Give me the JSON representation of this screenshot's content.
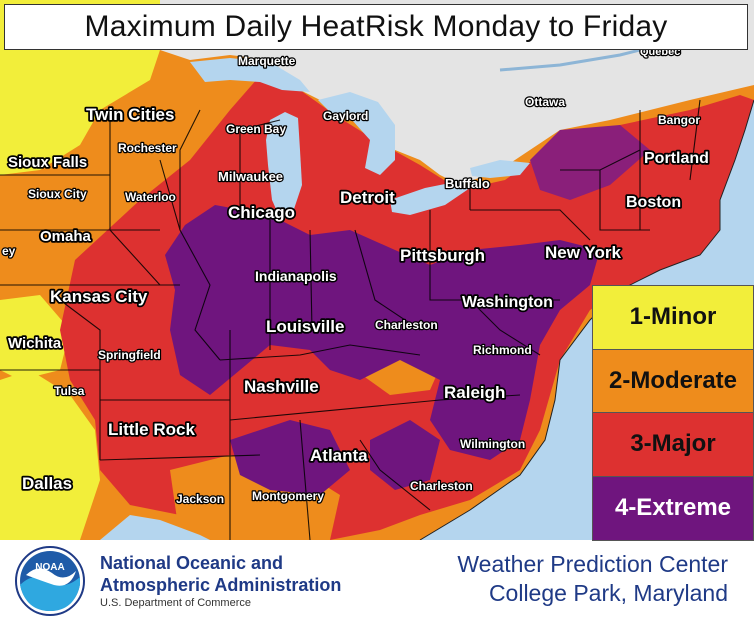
{
  "title": "Maximum Daily HeatRisk Monday to Friday",
  "legend": {
    "items": [
      {
        "label": "1-Minor",
        "color": "#f2ee3a"
      },
      {
        "label": "2-Moderate",
        "color": "#ee8c1c"
      },
      {
        "label": "3-Major",
        "color": "#dd3130"
      },
      {
        "label": "4-Extreme",
        "color": "#6f157e"
      }
    ]
  },
  "colors": {
    "water": "#b4d5ee",
    "canada": "#e4e4e4",
    "border": "#000000"
  },
  "map_labels": {
    "major": {
      "twin_cities": "Twin Cities",
      "chicago": "Chicago",
      "detroit": "Detroit",
      "pittsburgh": "Pittsburgh",
      "new_york": "New York",
      "boston": "Boston",
      "portland": "Portland",
      "kansas_city": "Kansas City",
      "indianapolis": "Indianapolis",
      "louisville": "Louisville",
      "washington": "Washington",
      "nashville": "Nashville",
      "raleigh": "Raleigh",
      "little_rock": "Little Rock",
      "atlanta": "Atlanta",
      "dallas": "Dallas",
      "omaha": "Omaha",
      "wichita": "Wichita",
      "sioux_falls": "Sioux Falls"
    },
    "minor": {
      "marquette": "Marquette",
      "gaylord": "Gaylord",
      "green_bay": "Green Bay",
      "rochester": "Rochester",
      "milwaukee": "Milwaukee",
      "sioux_city": "Sioux City",
      "waterloo": "Waterloo",
      "buffalo": "Buffalo",
      "ottawa": "Ottawa",
      "quebec": "Quebec",
      "bangor": "Bangor",
      "charleston_wv": "Charleston",
      "richmond": "Richmond",
      "springfield": "Springfield",
      "tulsa": "Tulsa",
      "wilmington": "Wilmington",
      "jackson": "Jackson",
      "montgomery": "Montgomery",
      "charleston_sc": "Charleston",
      "edge_fragment": "ey"
    }
  },
  "footer": {
    "agency_line1": "National Oceanic and",
    "agency_line2": "Atmospheric Administration",
    "department": "U.S. Department of Commerce",
    "logo_text": "NOAA",
    "center_line1": "Weather Prediction Center",
    "center_line2": "College Park, Maryland"
  }
}
